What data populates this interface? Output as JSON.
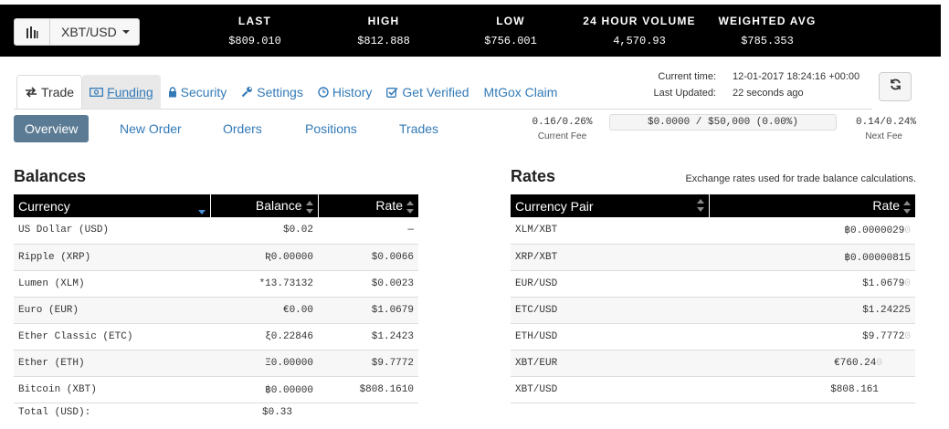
{
  "ticker": {
    "pair_label": "XBT/USD",
    "stats": [
      {
        "label": "LAST",
        "value": "$809.010"
      },
      {
        "label": "HIGH",
        "value": "$812.888"
      },
      {
        "label": "LOW",
        "value": "$756.001"
      },
      {
        "label": "24 HOUR VOLUME",
        "value": "4,570.93"
      },
      {
        "label": "WEIGHTED AVG",
        "value": "$785.353"
      }
    ]
  },
  "nav": {
    "tabs": [
      {
        "label": "Trade",
        "icon": "exchange-icon"
      },
      {
        "label": "Funding",
        "icon": "money-icon"
      },
      {
        "label": "Security",
        "icon": "lock-icon"
      },
      {
        "label": "Settings",
        "icon": "wrench-icon"
      },
      {
        "label": "History",
        "icon": "clock-icon"
      },
      {
        "label": "Get Verified",
        "icon": "check-square-icon"
      },
      {
        "label": "MtGox Claim",
        "icon": ""
      }
    ],
    "active_tab": "Trade"
  },
  "times": {
    "current_label": "Current time:",
    "current_value": "12-01-2017 18:24:16 +00:00",
    "updated_label": "Last Updated:",
    "updated_value": "22 seconds ago"
  },
  "subtabs": [
    "Overview",
    "New Order",
    "Orders",
    "Positions",
    "Trades"
  ],
  "active_subtab": "Overview",
  "fees": {
    "current_value": "0.16/0.26%",
    "current_label": "Current Fee",
    "progress_text": "$0.0000 / $50,000 (0.00%)",
    "progress_fraction": 0.0,
    "next_value": "0.14/0.24%",
    "next_label": "Next Fee"
  },
  "balances": {
    "title": "Balances",
    "columns": [
      "Currency",
      "Balance",
      "Rate"
    ],
    "rows": [
      {
        "currency": "US Dollar (USD)",
        "balance": "$0.02",
        "rate": "—"
      },
      {
        "currency": "Ripple (XRP)",
        "balance": "Ʀ0.00000",
        "rate": "$0.0066"
      },
      {
        "currency": "Lumen (XLM)",
        "balance": "*13.73132",
        "rate": "$0.0023"
      },
      {
        "currency": "Euro (EUR)",
        "balance": "€0.00",
        "rate": "$1.0679"
      },
      {
        "currency": "Ether Classic (ETC)",
        "balance": "ξ0.22846",
        "rate": "$1.2423"
      },
      {
        "currency": "Ether (ETH)",
        "balance": "Ξ0.00000",
        "rate": "$9.7772"
      },
      {
        "currency": "Bitcoin (XBT)",
        "balance": "฿0.00000",
        "rate": "$808.1610"
      }
    ],
    "total_label": "Total (USD):",
    "total_value": "$0.33"
  },
  "rates": {
    "title": "Rates",
    "note": "Exchange rates used for trade balance calculations.",
    "columns": [
      "Currency Pair",
      "Rate"
    ],
    "rows": [
      {
        "pair": "XLM/XBT",
        "rate": "฿0.0000029",
        "trail": "0"
      },
      {
        "pair": "XRP/XBT",
        "rate": "฿0.00000815",
        "trail": ""
      },
      {
        "pair": "EUR/USD",
        "rate": "$1.0679",
        "trail": "0"
      },
      {
        "pair": "ETC/USD",
        "rate": "$1.24225",
        "trail": ""
      },
      {
        "pair": "ETH/USD",
        "rate": "$9.7772",
        "trail": "0"
      },
      {
        "pair": "XBT/EUR",
        "rate": "€760.24",
        "trail": "0"
      },
      {
        "pair": "XBT/USD",
        "rate": "$808.161",
        "trail": ""
      }
    ]
  }
}
